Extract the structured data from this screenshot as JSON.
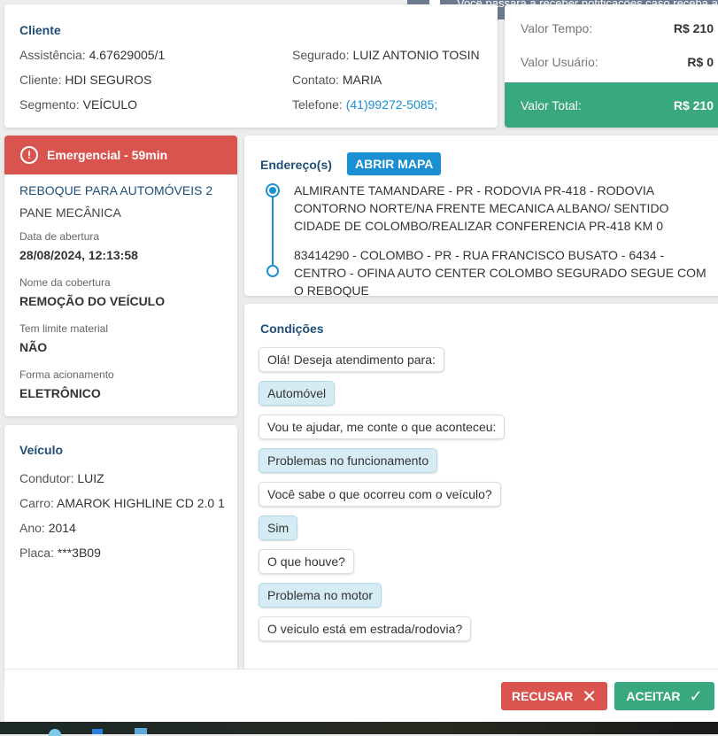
{
  "notification": {
    "text": "Você passará a receber notificações caso receba alg"
  },
  "client": {
    "title": "Cliente",
    "assistencia_label": "Assistência:",
    "assistencia": "4.67629005/1",
    "cliente_label": "Cliente:",
    "cliente": "HDI SEGUROS",
    "segmento_label": "Segmento:",
    "segmento": "VEÍCULO",
    "segurado_label": "Segurado:",
    "segurado": "LUIZ ANTONIO TOSIN",
    "contato_label": "Contato:",
    "contato": "MARIA",
    "telefone_label": "Telefone:",
    "telefone": "(41)99272-5085;"
  },
  "values": {
    "tempo_label": "Valor Tempo:",
    "tempo": "R$ 210",
    "usuario_label": "Valor Usuário:",
    "usuario": "R$ 0",
    "total_label": "Valor Total:",
    "total": "R$ 210"
  },
  "service": {
    "badge": "Emergencial - 59min",
    "name": "REBOQUE PARA AUTOMÓVEIS 2",
    "problem": "PANE MECÂNICA",
    "fields": [
      {
        "label": "Data de abertura",
        "value": "28/08/2024, 12:13:58"
      },
      {
        "label": "Nome da cobertura",
        "value": "REMOÇÃO DO VEÍCULO"
      },
      {
        "label": "Tem limite material",
        "value": "NÃO"
      },
      {
        "label": "Forma acionamento",
        "value": "ELETRÔNICO"
      }
    ]
  },
  "vehicle": {
    "title": "Veículo",
    "condutor_label": "Condutor:",
    "condutor": "LUIZ",
    "carro_label": "Carro:",
    "carro": "AMAROK HIGHLINE CD 2.0 1",
    "ano_label": "Ano:",
    "ano": "2014",
    "placa_label": "Placa:",
    "placa": "***3B09"
  },
  "address": {
    "title": "Endereço(s)",
    "map_button": "ABRIR MAPA",
    "origin": "ALMIRANTE TAMANDARE - PR - RODOVIA PR-418 - RODOVIA CONTORNO NORTE/NA FRENTE MECANICA ALBANO/ SENTIDO CIDADE DE COLOMBO/REALIZAR CONFERENCIA PR-418 KM 0",
    "destination": "83414290 - COLOMBO - PR - RUA FRANCISCO BUSATO - 6434 - CENTRO - OFINA AUTO CENTER COLOMBO SEGURADO SEGUE COM O REBOQUE"
  },
  "conditions": {
    "title": "Condições",
    "messages": [
      {
        "text": "Olá! Deseja atendimento para:",
        "answer": false
      },
      {
        "text": "Automóvel",
        "answer": true
      },
      {
        "text": "Vou te ajudar, me conte o que aconteceu:",
        "answer": false
      },
      {
        "text": "Problemas no funcionamento",
        "answer": true
      },
      {
        "text": "Você sabe o que ocorreu com o veículo?",
        "answer": false
      },
      {
        "text": "Sim",
        "answer": true
      },
      {
        "text": "O que houve?",
        "answer": false
      },
      {
        "text": "Problema no motor",
        "answer": true
      },
      {
        "text": "O veiculo está em estrada/rodovia?",
        "answer": false
      }
    ]
  },
  "footer": {
    "refuse": "RECUSAR",
    "accept": "ACEITAR"
  },
  "colors": {
    "green": "#3aa87e",
    "red": "#d9534f",
    "blue": "#1a8fd1",
    "navy": "#1f4e79"
  }
}
